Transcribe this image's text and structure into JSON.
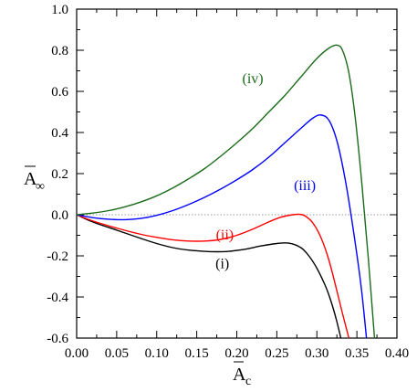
{
  "chart_data": {
    "type": "line",
    "xlabel": {
      "main": "A",
      "sub": "c"
    },
    "ylabel": {
      "main": "A",
      "sub": "∞"
    },
    "xlim": [
      0.0,
      0.4
    ],
    "ylim": [
      -0.6,
      1.0
    ],
    "xticks": [
      "0.00",
      "0.05",
      "0.10",
      "0.15",
      "0.20",
      "0.25",
      "0.30",
      "0.35",
      "0.40"
    ],
    "yticks": [
      "-0.6",
      "-0.4",
      "-0.2",
      "0.0",
      "0.2",
      "0.4",
      "0.6",
      "0.8",
      "1.0"
    ],
    "zero_line": true,
    "grid": false,
    "series": [
      {
        "name": "(i)",
        "color": "#000000",
        "label_at": [
          0.182,
          -0.26
        ],
        "x": [
          0.0,
          0.02,
          0.05,
          0.08,
          0.1,
          0.12,
          0.14,
          0.16,
          0.175,
          0.19,
          0.21,
          0.23,
          0.25,
          0.265,
          0.28,
          0.29,
          0.3,
          0.31,
          0.315,
          0.32,
          0.325,
          0.33
        ],
        "y": [
          0.0,
          -0.035,
          -0.075,
          -0.115,
          -0.14,
          -0.16,
          -0.172,
          -0.178,
          -0.18,
          -0.178,
          -0.168,
          -0.152,
          -0.14,
          -0.138,
          -0.16,
          -0.2,
          -0.26,
          -0.34,
          -0.39,
          -0.45,
          -0.52,
          -0.6
        ]
      },
      {
        "name": "(ii)",
        "color": "#ff0000",
        "label_at": [
          0.185,
          -0.12
        ],
        "x": [
          0.0,
          0.02,
          0.05,
          0.08,
          0.1,
          0.12,
          0.14,
          0.16,
          0.18,
          0.2,
          0.22,
          0.24,
          0.255,
          0.27,
          0.278,
          0.285,
          0.295,
          0.305,
          0.315,
          0.325,
          0.332,
          0.34
        ],
        "y": [
          0.0,
          -0.03,
          -0.065,
          -0.095,
          -0.11,
          -0.122,
          -0.128,
          -0.128,
          -0.12,
          -0.1,
          -0.07,
          -0.035,
          -0.012,
          0.0,
          0.002,
          -0.005,
          -0.04,
          -0.11,
          -0.22,
          -0.37,
          -0.48,
          -0.6
        ]
      },
      {
        "name": "(iii)",
        "color": "#0000ff",
        "label_at": [
          0.285,
          0.12
        ],
        "x": [
          0.0,
          0.02,
          0.04,
          0.06,
          0.08,
          0.1,
          0.12,
          0.14,
          0.16,
          0.18,
          0.2,
          0.22,
          0.24,
          0.26,
          0.28,
          0.295,
          0.305,
          0.315,
          0.325,
          0.335,
          0.345,
          0.355,
          0.362
        ],
        "y": [
          0.0,
          -0.014,
          -0.022,
          -0.024,
          -0.018,
          -0.003,
          0.02,
          0.05,
          0.085,
          0.125,
          0.17,
          0.22,
          0.28,
          0.35,
          0.42,
          0.47,
          0.485,
          0.46,
          0.36,
          0.18,
          -0.06,
          -0.34,
          -0.6
        ]
      },
      {
        "name": "(iv)",
        "color": "#1a6b1a",
        "label_at": [
          0.22,
          0.64
        ],
        "x": [
          0.0,
          0.02,
          0.04,
          0.06,
          0.08,
          0.1,
          0.12,
          0.14,
          0.16,
          0.18,
          0.2,
          0.22,
          0.24,
          0.26,
          0.28,
          0.3,
          0.315,
          0.325,
          0.332,
          0.34,
          0.348,
          0.356,
          0.364,
          0.372
        ],
        "y": [
          0.0,
          0.008,
          0.02,
          0.038,
          0.062,
          0.092,
          0.13,
          0.175,
          0.225,
          0.285,
          0.35,
          0.42,
          0.5,
          0.58,
          0.67,
          0.76,
          0.81,
          0.825,
          0.8,
          0.69,
          0.47,
          0.16,
          -0.2,
          -0.6
        ]
      }
    ]
  }
}
